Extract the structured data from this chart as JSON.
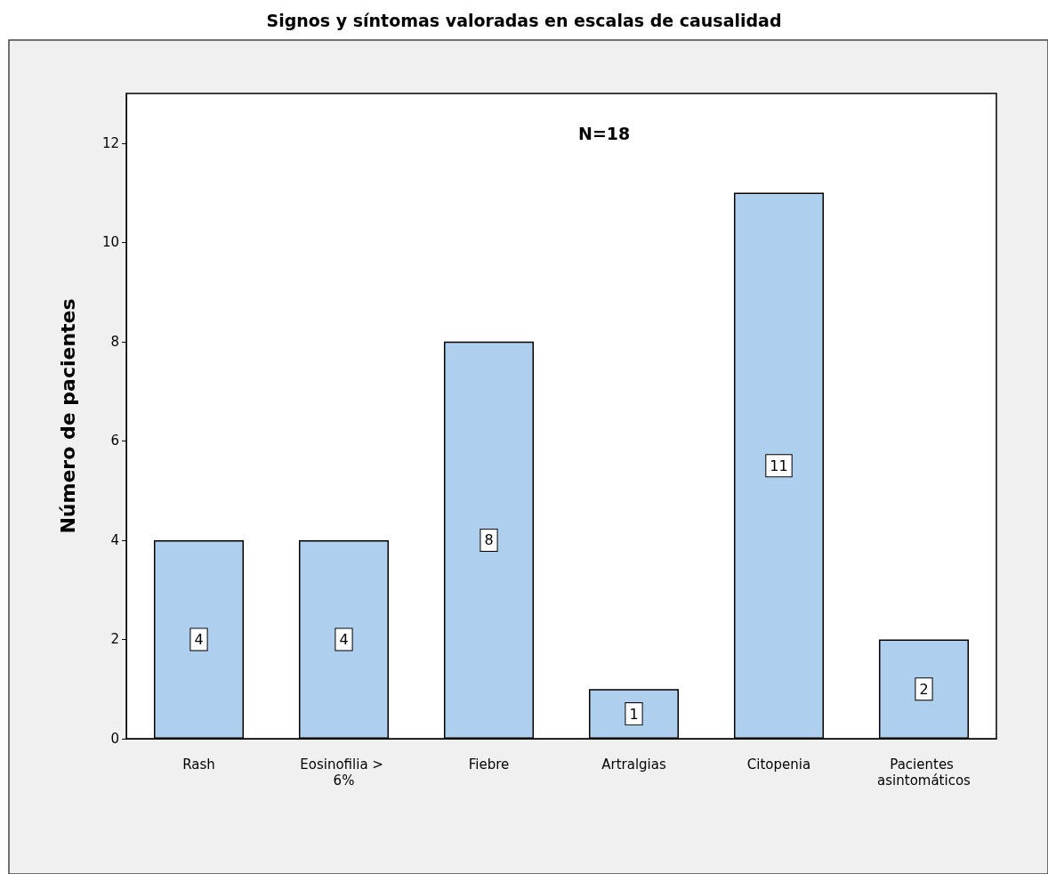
{
  "chart_data": {
    "type": "bar",
    "title": "Signos y síntomas valoradas en escalas de causalidad",
    "ylabel": "Número de pacientes",
    "categories": [
      "Rash",
      "Eosinofilia > 6%",
      "Fiebre",
      "Artralgias",
      "Citopenia",
      "Pacientes asintomáticos"
    ],
    "values": [
      4,
      4,
      8,
      1,
      11,
      2
    ],
    "color": "#aed0ee",
    "ylim": [
      0,
      13
    ],
    "yticks": [
      0,
      2,
      4,
      6,
      8,
      10,
      12
    ],
    "annotations": [
      "N=18"
    ],
    "data_labels": true,
    "grid": false
  }
}
